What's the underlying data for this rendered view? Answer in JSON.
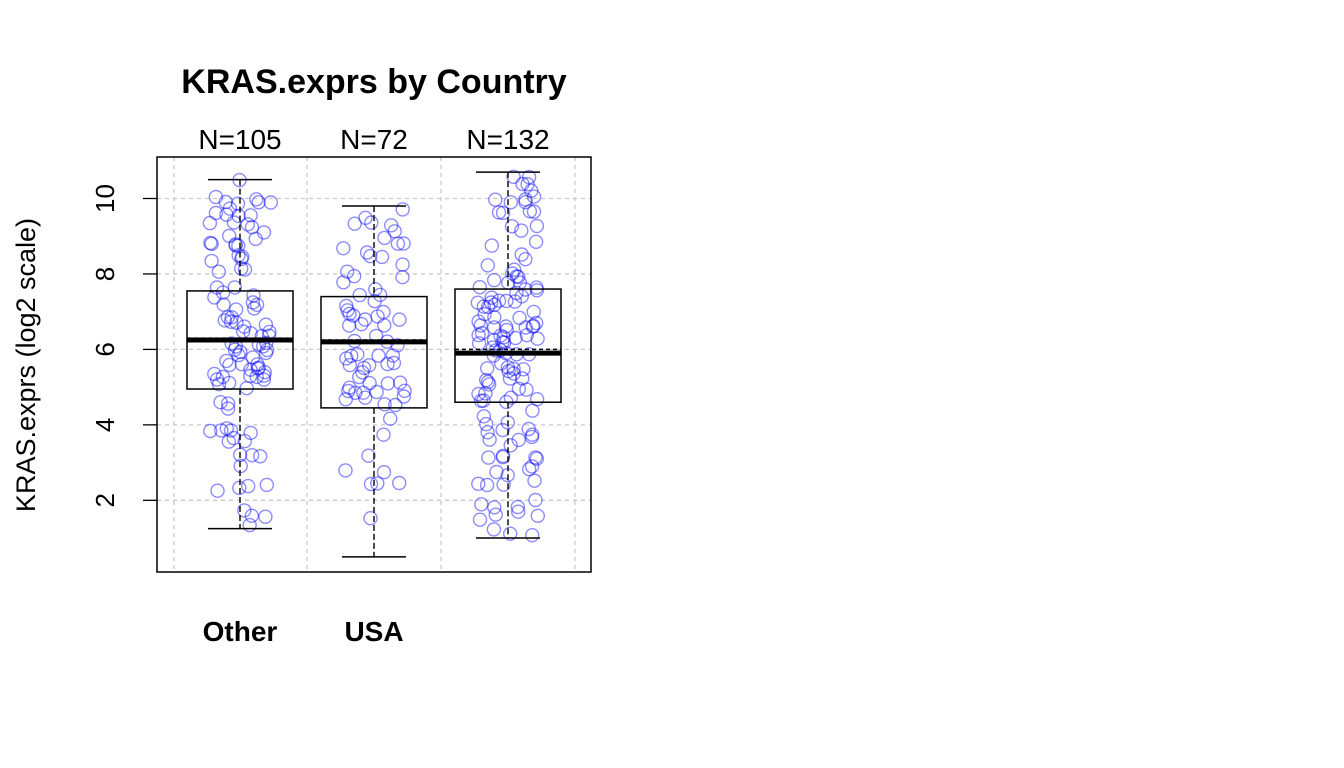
{
  "chart_data": {
    "type": "box",
    "title": "KRAS.exprs by Country",
    "ylabel": "KRAS.exprs  (log2 scale)",
    "xlabel": "",
    "categories": [
      "Other",
      "USA",
      ""
    ],
    "counts": [
      "N=105",
      "N=72",
      "N=132"
    ],
    "yticks": [
      2,
      4,
      6,
      8,
      10
    ],
    "ylim": [
      0.1,
      11.1
    ],
    "grid": true,
    "boxes": [
      {
        "category": "Other",
        "n": 105,
        "whisker_low": 1.25,
        "q1": 4.95,
        "median": 6.25,
        "mean": 6.3,
        "q3": 7.55,
        "whisker_high": 10.5
      },
      {
        "category": "USA",
        "n": 72,
        "whisker_low": 0.5,
        "q1": 4.45,
        "median": 6.2,
        "mean": 6.25,
        "q3": 7.4,
        "whisker_high": 9.8
      },
      {
        "category": "",
        "n": 132,
        "whisker_low": 1.0,
        "q1": 4.6,
        "median": 5.9,
        "mean": 6.0,
        "q3": 7.6,
        "whisker_high": 10.7
      }
    ],
    "point_color": "#0000ff",
    "box_color": "#000000"
  }
}
